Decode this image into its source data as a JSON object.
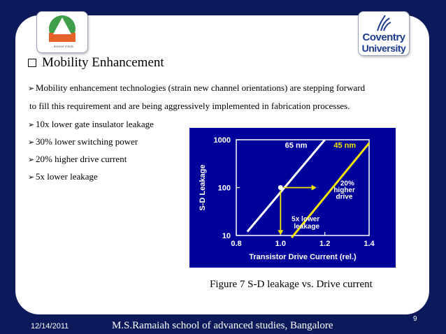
{
  "slide": {
    "heading": "Mobility Enhancement",
    "lines": [
      "Mobility enhancement technologies (strain new channel orientations) are stepping forward",
      "to fill this requirement and are being aggressively implemented in fabrication processes."
    ],
    "bullets": [
      "10x lower gate insulator leakage",
      "30% lower switching power",
      "20% higher drive current",
      "5x lower leakage"
    ],
    "caption": "Figure 7 S-D leakage vs. Drive current",
    "page_number": "9",
    "footer_date": "12/14/2011",
    "footer_school": "M.S.Ramaiah school of advanced studies, Bangalore",
    "logo_left_tag": "...desired minds",
    "logo_right_line1": "Coventry",
    "logo_right_line2": "University"
  },
  "chart_data": {
    "type": "line",
    "xlabel": "Transistor Drive Current (rel.)",
    "ylabel": "S-D Leakage",
    "x_ticks": [
      "0.8",
      "1.0",
      "1.2",
      "1.4"
    ],
    "y_ticks": [
      "10",
      "100",
      "1000"
    ],
    "xlim": [
      0.8,
      1.4
    ],
    "ylim": [
      10,
      1000
    ],
    "y_scale": "log",
    "series": [
      {
        "name": "65 nm",
        "color": "#ffffff",
        "points": [
          [
            0.85,
            12
          ],
          [
            1.2,
            1000
          ]
        ]
      },
      {
        "name": "45 nm",
        "color": "#f2e600",
        "points": [
          [
            1.05,
            9
          ],
          [
            1.4,
            850
          ]
        ]
      }
    ],
    "annotations": [
      "20%",
      "higher",
      "drive",
      "5x lower",
      "leakage"
    ]
  }
}
